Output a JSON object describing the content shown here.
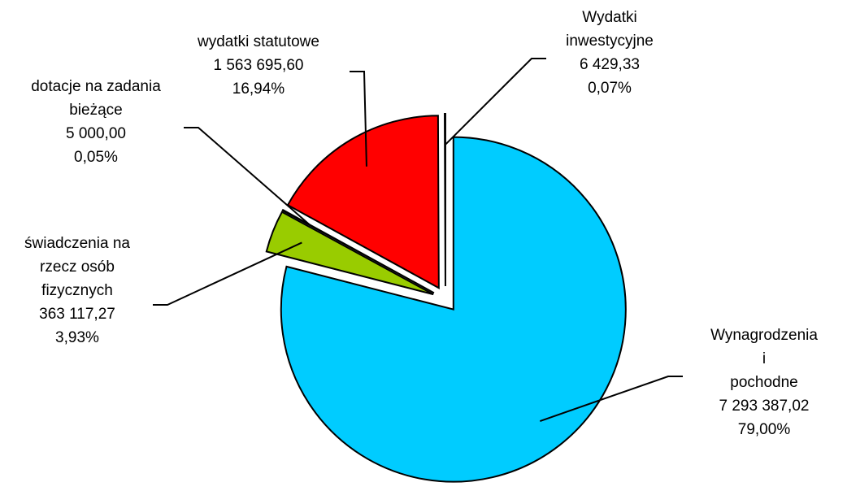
{
  "chart_data": {
    "type": "pie",
    "categories": [
      "Wynagrodzenia i\npochodne",
      "świadczenia na\nrzecz osób\nfizycznych",
      "dotacje na zadania\nbieżące",
      "wydatki statutowe",
      "Wydatki\ninwestycyjne"
    ],
    "values": [
      7293387.02,
      363117.27,
      5000.0,
      1563695.6,
      6429.33
    ],
    "value_labels": [
      "7 293 387,02",
      "363 117,27",
      "5 000,00",
      "1 563 695,60",
      "6 429,33"
    ],
    "percentages": [
      79.0,
      3.93,
      0.05,
      16.94,
      0.07
    ],
    "percentage_labels": [
      "79,00%",
      "3,93%",
      "0,05%",
      "16,94%",
      "0,07%"
    ],
    "colors": [
      "#00ccff",
      "#99cc00",
      "#ffff00",
      "#ff0000",
      "#ff9900"
    ]
  }
}
